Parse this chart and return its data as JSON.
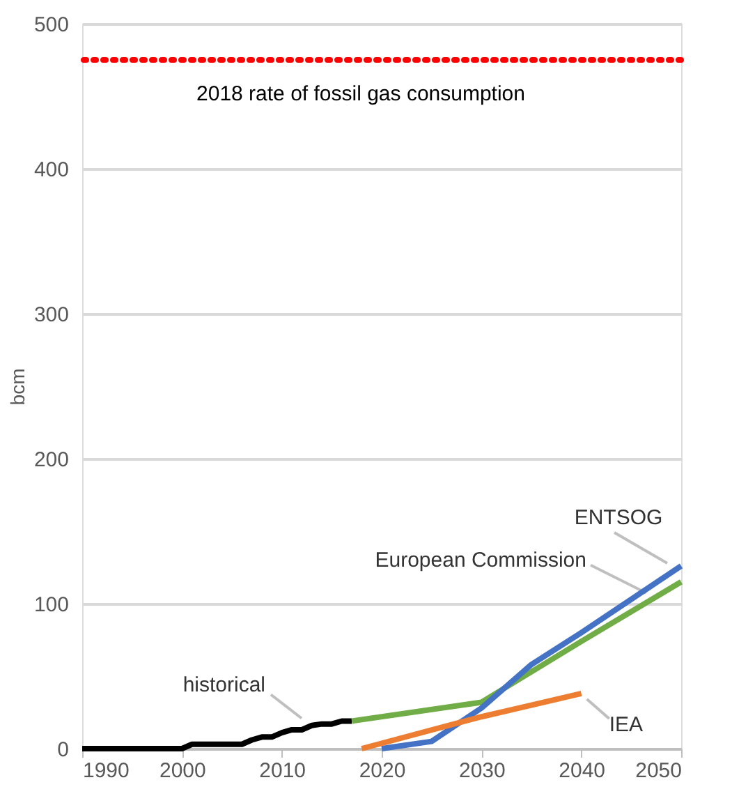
{
  "chart_data": {
    "type": "line",
    "ylabel": "bcm",
    "xlim": [
      1990,
      2050
    ],
    "xticks": [
      1990,
      2000,
      2010,
      2020,
      2030,
      2040,
      2050
    ],
    "ylim": [
      0,
      500
    ],
    "yticks": [
      0,
      100,
      200,
      300,
      400,
      500
    ],
    "grid": "y",
    "marker": "none",
    "line_style": "solid",
    "series": [
      {
        "name": "historical",
        "color": "#000000",
        "x": [
          1990,
          2000,
          2001,
          2006,
          2007,
          2008,
          2009,
          2010,
          2011,
          2012,
          2013,
          2014,
          2015,
          2016,
          2017
        ],
        "values": [
          0,
          0,
          3,
          3,
          6,
          8,
          8,
          11,
          13,
          13,
          16,
          17,
          17,
          19,
          19
        ]
      },
      {
        "name": "European Commission",
        "color": "#70ad47",
        "x": [
          2017,
          2030,
          2040,
          2050
        ],
        "values": [
          19,
          32,
          74,
          115
        ]
      },
      {
        "name": "ENTSOG",
        "color": "#4472c4",
        "x": [
          2020,
          2025,
          2030,
          2035,
          2040,
          2050
        ],
        "values": [
          0,
          5,
          28,
          58,
          80,
          126
        ]
      },
      {
        "name": "IEA",
        "color": "#ed7d31",
        "x": [
          2018,
          2030,
          2035,
          2040
        ],
        "values": [
          0,
          22,
          30,
          38
        ]
      }
    ],
    "ref_lines": [
      {
        "axis": "y",
        "value": 475,
        "label": "2018 rate of fossil gas consumption",
        "color": "#ff0000",
        "line_style": "dotted"
      }
    ]
  }
}
